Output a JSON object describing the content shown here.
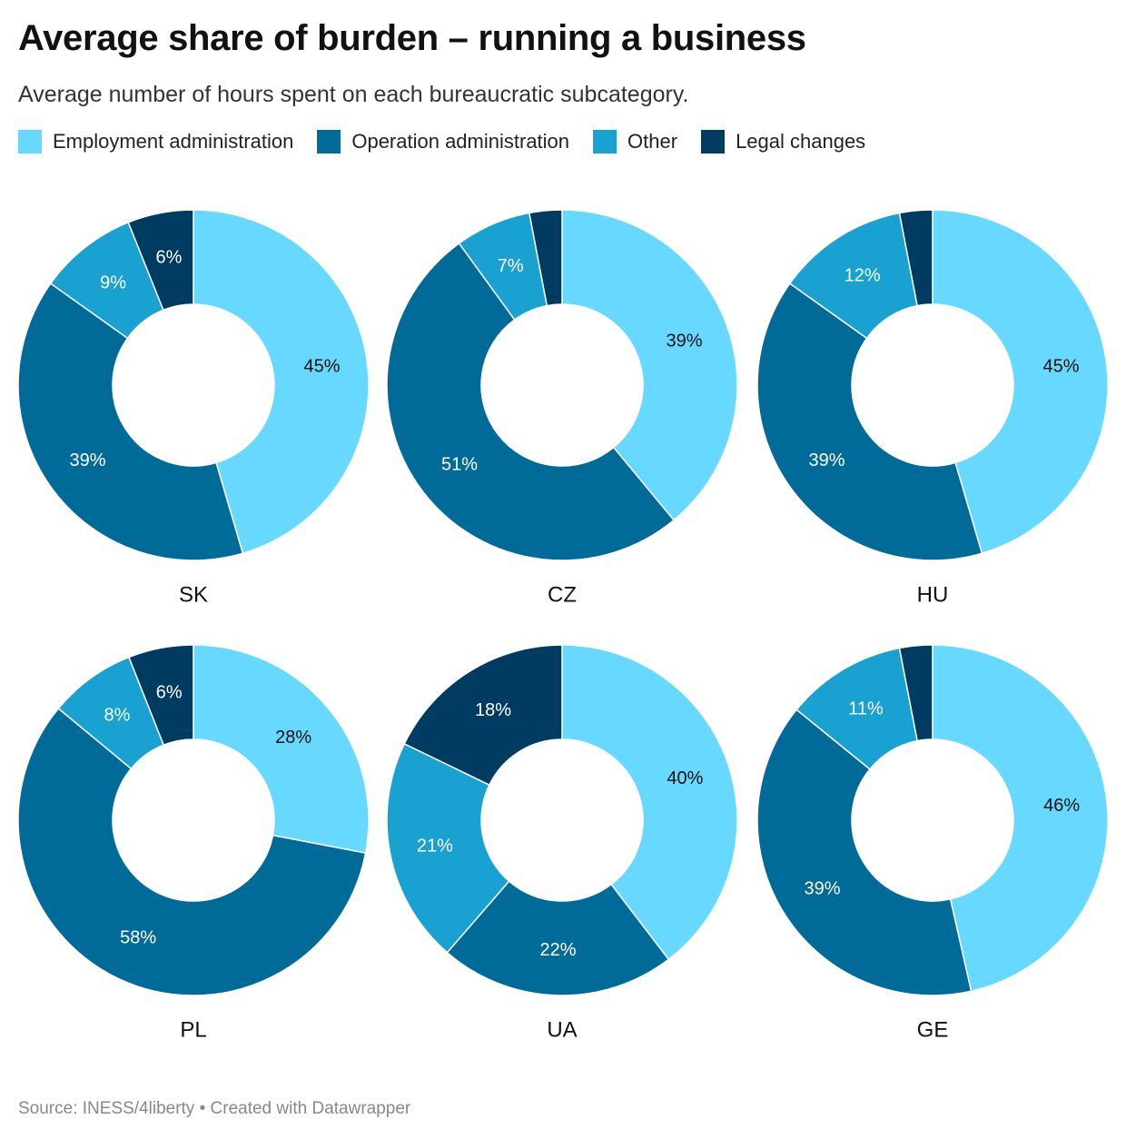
{
  "title": "Average share of burden – running a business",
  "subtitle": "Average number of hours spent on each bureaucratic subcategory.",
  "footer": {
    "source": "Source: INESS/4liberty",
    "separator": "•",
    "credit": "Created with Datawrapper"
  },
  "legend": [
    {
      "label": "Employment administration",
      "color": "#67d8ff"
    },
    {
      "label": "Operation administration",
      "color": "#006b99"
    },
    {
      "label": "Other",
      "color": "#19a1d1"
    },
    {
      "label": "Legal changes",
      "color": "#003b61"
    }
  ],
  "chart_data": {
    "type": "pie",
    "variant": "donut",
    "series_names": [
      "Employment administration",
      "Operation administration",
      "Other",
      "Legal changes"
    ],
    "colors": [
      "#67d8ff",
      "#006b99",
      "#19a1d1",
      "#003b61"
    ],
    "label_colors": [
      "#111111",
      "#ffffff",
      "#ffffff",
      "#ffffff"
    ],
    "charts": [
      {
        "name": "SK",
        "values": [
          45,
          39,
          9,
          6
        ],
        "labels": [
          "45%",
          "39%",
          "9%",
          "6%"
        ]
      },
      {
        "name": "CZ",
        "values": [
          39,
          51,
          7,
          3
        ],
        "labels": [
          "39%",
          "51%",
          "7%",
          ""
        ]
      },
      {
        "name": "HU",
        "values": [
          45,
          39,
          12,
          3
        ],
        "labels": [
          "45%",
          "39%",
          "12%",
          ""
        ]
      },
      {
        "name": "PL",
        "values": [
          28,
          58,
          8,
          6
        ],
        "labels": [
          "28%",
          "58%",
          "8%",
          "6%"
        ]
      },
      {
        "name": "UA",
        "values": [
          40,
          22,
          21,
          18
        ],
        "labels": [
          "40%",
          "22%",
          "21%",
          "18%"
        ]
      },
      {
        "name": "GE",
        "values": [
          46,
          39,
          11,
          3
        ],
        "labels": [
          "46%",
          "39%",
          "11%",
          ""
        ]
      }
    ]
  }
}
